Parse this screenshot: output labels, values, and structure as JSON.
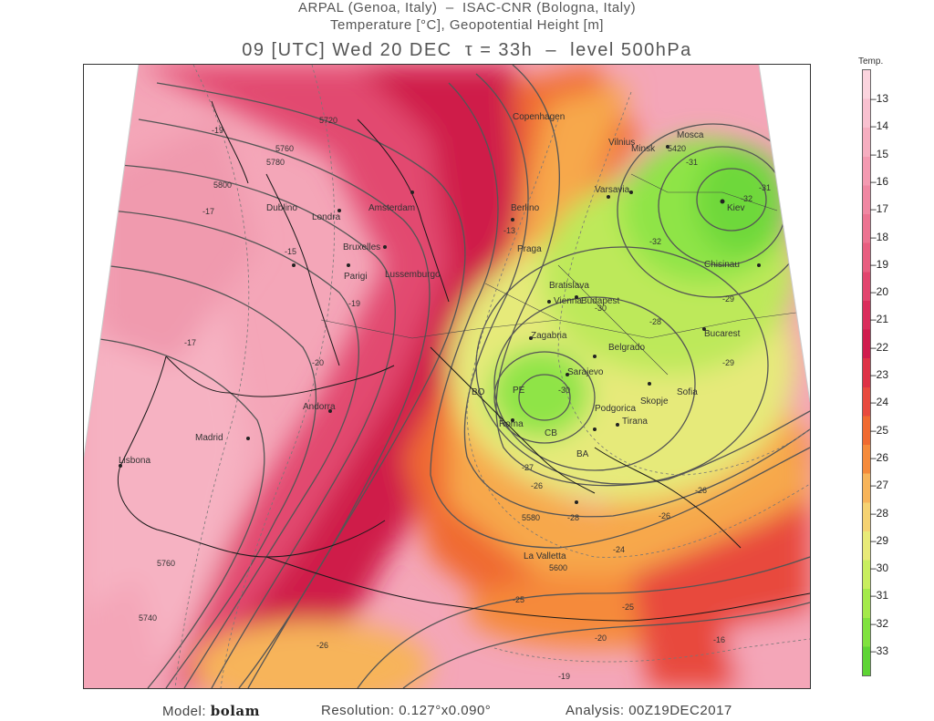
{
  "header": {
    "line1": "ARPAL (Genoa, Italy)  –  ISAC-CNR (Bologna, Italy)",
    "line2": "Temperature [°C], Geopotential Height [m]",
    "line3": "09 [UTC] Wed 20 DEC  τ = 33h  –  level 500hPa"
  },
  "colorbar": {
    "title": "Temp.",
    "ticks": [
      "-13",
      "-14",
      "-15",
      "-16",
      "-17",
      "-18",
      "-19",
      "-20",
      "-21",
      "-22",
      "-23",
      "-24",
      "-25",
      "-26",
      "-27",
      "-28",
      "-29",
      "-30",
      "-31",
      "-32",
      "-33"
    ],
    "colors": [
      "#fbd4de",
      "#f9c1d0",
      "#f6aec0",
      "#f49ab1",
      "#f087a2",
      "#ec7391",
      "#e85e80",
      "#e2456e",
      "#da2d5c",
      "#d01c4e",
      "#de3246",
      "#e84a3e",
      "#f06a30",
      "#f58a3a",
      "#f7b45a",
      "#f5d272",
      "#e8ea78",
      "#c8ee5e",
      "#a4ea4a",
      "#80e23e",
      "#5ed434"
    ]
  },
  "cities": [
    "Mosca",
    "Minsk",
    "Vilnius",
    "Kiev",
    "Varsavia",
    "Chisinau",
    "Bucarest",
    "Sofia",
    "Belgrado",
    "Sarajevo",
    "Zagabria",
    "Vienna",
    "Budapest",
    "Bratislava",
    "Podgorica",
    "Tirana",
    "Skopje",
    "Roma",
    "BA",
    "CB",
    "PE",
    "BO",
    "La Valletta",
    "Berlino",
    "Praga",
    "Amsterdam",
    "Bruxelles",
    "Londra",
    "Parigi",
    "Lussemburgo",
    "Dublino",
    "Andorra",
    "Madrid",
    "Lisbona",
    "Copenhagen"
  ],
  "contour_labels": [
    "5720",
    "5760",
    "5780",
    "5800",
    "5760",
    "5740",
    "5420",
    "5580",
    "5600",
    "-19",
    "-17",
    "-15",
    "-13",
    "-17",
    "-19",
    "-20",
    "-28",
    "-30",
    "-31",
    "-32",
    "-32",
    "-31",
    "-29",
    "-26",
    "-25",
    "-24",
    "-26",
    "-25",
    "-26",
    "-20",
    "-16",
    "-19",
    "-27",
    "-28",
    "-30",
    "-29",
    "-26"
  ],
  "footer": {
    "model_label": "Model:",
    "model_value": "bolam",
    "resolution": "Resolution:  0.127°x0.090°",
    "analysis": "Analysis:  00Z19DEC2017"
  }
}
